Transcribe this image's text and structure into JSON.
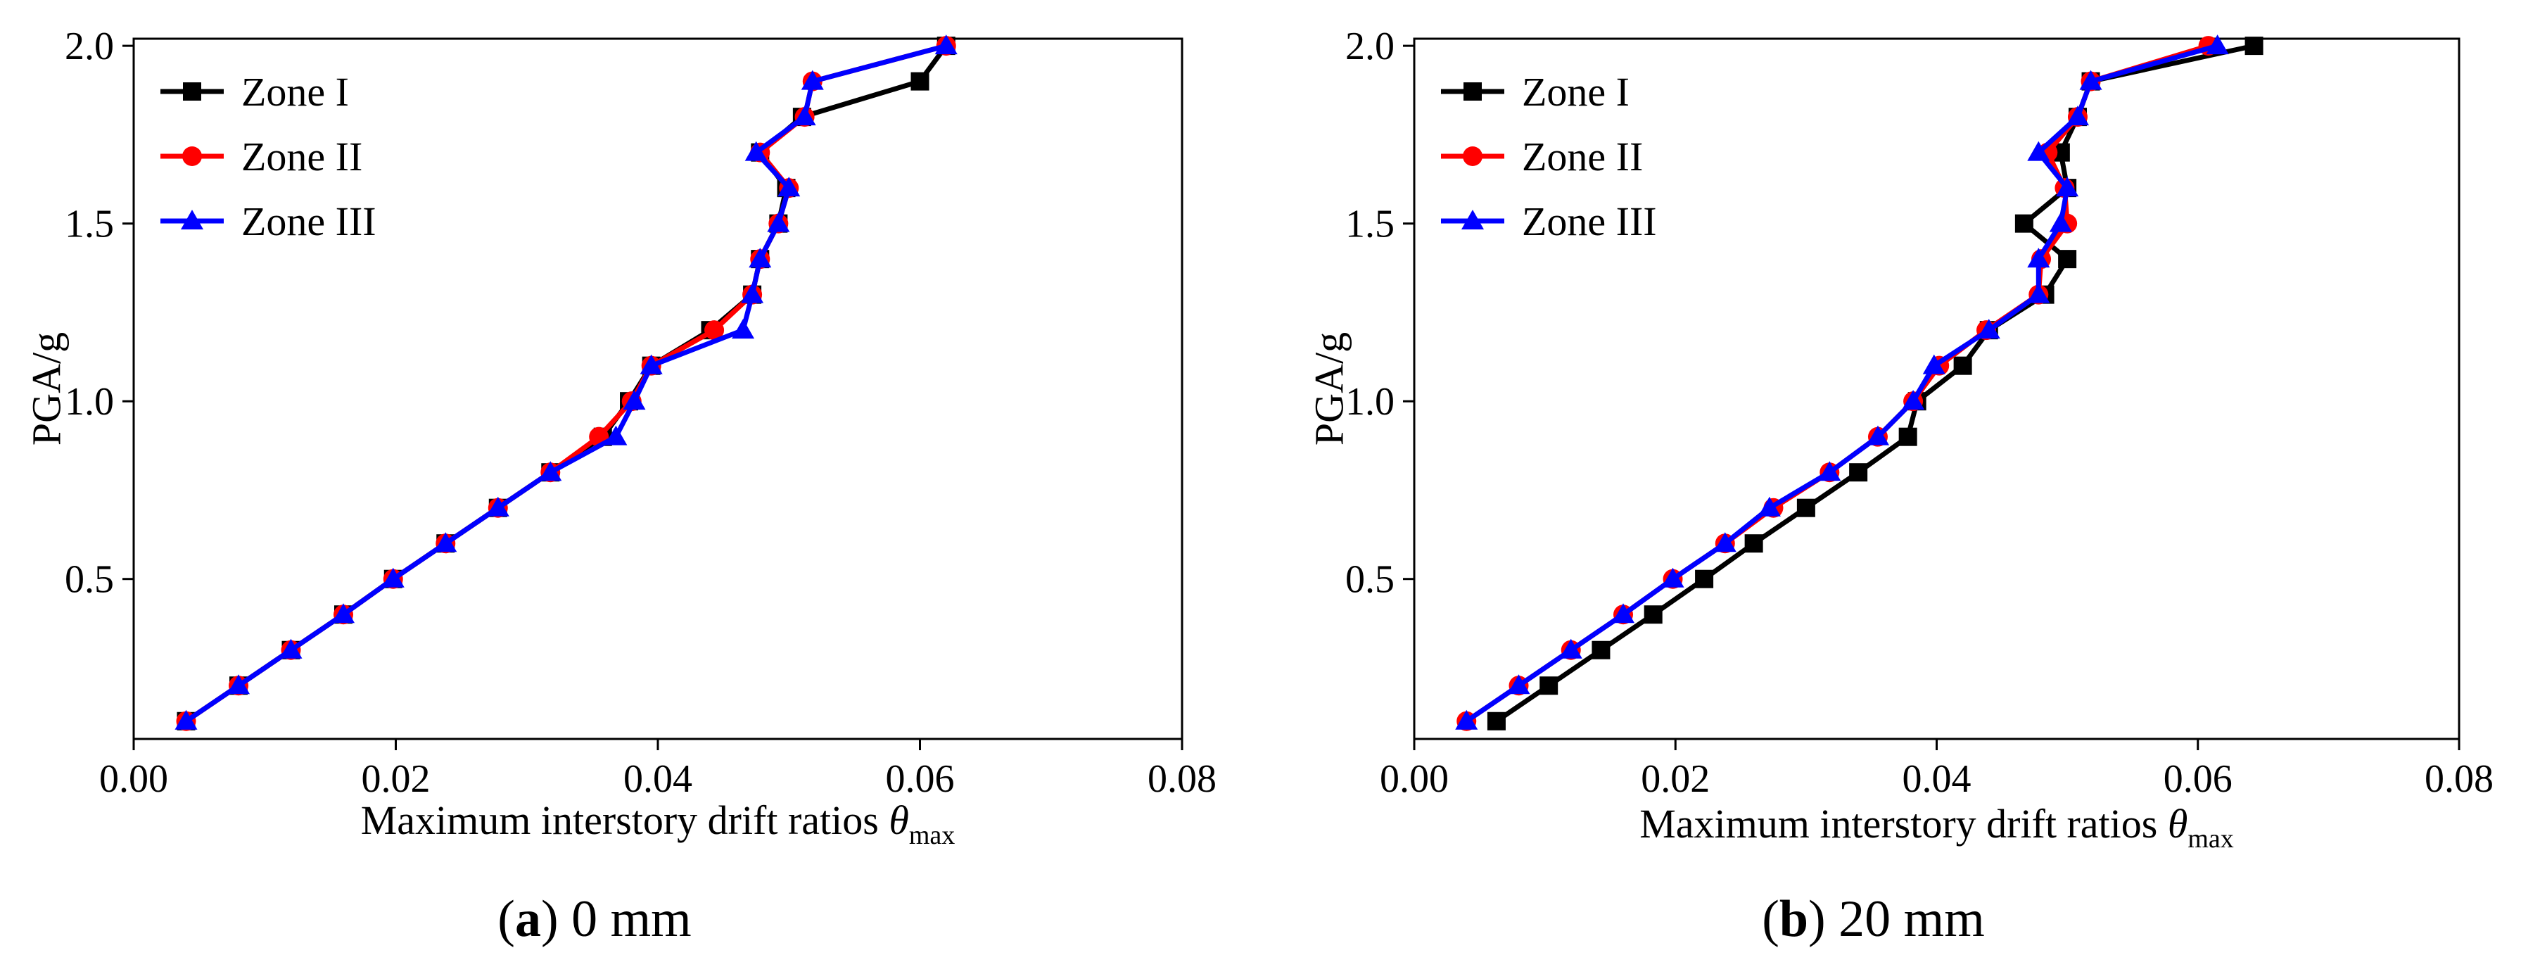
{
  "chart_data": [
    {
      "type": "line",
      "panel_letter": "a",
      "caption": " 0 mm",
      "xlabel": "Maximum interstory drift ratios ",
      "xlabel_symbol": "θ",
      "xlabel_subscript": "max",
      "ylabel": "PGA/g",
      "xlim": [
        0,
        0.08
      ],
      "ylim": [
        0.05,
        2.02
      ],
      "xticks": [
        0,
        0.02,
        0.04,
        0.06,
        0.08
      ],
      "xtick_labels": [
        "0.00",
        "0.02",
        "0.04",
        "0.06",
        "0.08"
      ],
      "yticks": [
        0.5,
        1.0,
        1.5,
        2.0
      ],
      "ytick_labels": [
        "0.5",
        "1.0",
        "1.5",
        "2.0"
      ],
      "legend_position": "top-left",
      "series": [
        {
          "name": "Zone I",
          "color": "#000000",
          "marker": "square",
          "x": [
            0.004,
            0.008,
            0.012,
            0.016,
            0.0198,
            0.0238,
            0.0278,
            0.0318,
            0.0358,
            0.0378,
            0.0395,
            0.044,
            0.0472,
            0.0478,
            0.0492,
            0.0498,
            0.0478,
            0.051,
            0.06,
            0.062
          ],
          "y": [
            0.1,
            0.2,
            0.3,
            0.4,
            0.5,
            0.6,
            0.7,
            0.8,
            0.9,
            1.0,
            1.1,
            1.2,
            1.3,
            1.4,
            1.5,
            1.6,
            1.7,
            1.8,
            1.9,
            2.0
          ]
        },
        {
          "name": "Zone II",
          "color": "#ff0000",
          "marker": "circle",
          "x": [
            0.004,
            0.008,
            0.012,
            0.016,
            0.0198,
            0.0238,
            0.0278,
            0.0318,
            0.0355,
            0.038,
            0.0395,
            0.0443,
            0.0472,
            0.0478,
            0.0492,
            0.05,
            0.0478,
            0.0512,
            0.0518,
            0.062
          ],
          "y": [
            0.1,
            0.2,
            0.3,
            0.4,
            0.5,
            0.6,
            0.7,
            0.8,
            0.9,
            1.0,
            1.1,
            1.2,
            1.3,
            1.4,
            1.5,
            1.6,
            1.7,
            1.8,
            1.9,
            2.0
          ]
        },
        {
          "name": "Zone III",
          "color": "#0000ff",
          "marker": "triangle",
          "x": [
            0.004,
            0.008,
            0.012,
            0.016,
            0.0198,
            0.0238,
            0.0278,
            0.0318,
            0.0368,
            0.0382,
            0.0395,
            0.0465,
            0.0472,
            0.0478,
            0.0492,
            0.05,
            0.0475,
            0.0512,
            0.0518,
            0.062
          ],
          "y": [
            0.1,
            0.2,
            0.3,
            0.4,
            0.5,
            0.6,
            0.7,
            0.8,
            0.9,
            1.0,
            1.1,
            1.2,
            1.3,
            1.4,
            1.5,
            1.6,
            1.7,
            1.8,
            1.9,
            2.0
          ]
        }
      ]
    },
    {
      "type": "line",
      "panel_letter": "b",
      "caption": " 20 mm",
      "xlabel": "Maximum interstory drift ratios ",
      "xlabel_symbol": "θ",
      "xlabel_subscript": "max",
      "ylabel": "PGA/g",
      "xlim": [
        0,
        0.08
      ],
      "ylim": [
        0.05,
        2.02
      ],
      "xticks": [
        0,
        0.02,
        0.04,
        0.06,
        0.08
      ],
      "xtick_labels": [
        "0.00",
        "0.02",
        "0.04",
        "0.06",
        "0.08"
      ],
      "yticks": [
        0.5,
        1.0,
        1.5,
        2.0
      ],
      "ytick_labels": [
        "0.5",
        "1.0",
        "1.5",
        "2.0"
      ],
      "legend_position": "top-left",
      "series": [
        {
          "name": "Zone I",
          "color": "#000000",
          "marker": "square",
          "x": [
            0.0063,
            0.0103,
            0.0143,
            0.0183,
            0.0222,
            0.026,
            0.03,
            0.034,
            0.0378,
            0.0385,
            0.042,
            0.044,
            0.0483,
            0.05,
            0.0467,
            0.05,
            0.0495,
            0.0508,
            0.0518,
            0.0643
          ],
          "y": [
            0.1,
            0.2,
            0.3,
            0.4,
            0.5,
            0.6,
            0.7,
            0.8,
            0.9,
            1.0,
            1.1,
            1.2,
            1.3,
            1.4,
            1.5,
            1.6,
            1.7,
            1.8,
            1.9,
            2.0
          ]
        },
        {
          "name": "Zone II",
          "color": "#ff0000",
          "marker": "circle",
          "x": [
            0.004,
            0.008,
            0.012,
            0.016,
            0.0198,
            0.0238,
            0.0275,
            0.0318,
            0.0355,
            0.0382,
            0.0402,
            0.0438,
            0.0478,
            0.048,
            0.05,
            0.0498,
            0.0485,
            0.0508,
            0.0518,
            0.0608
          ],
          "y": [
            0.1,
            0.2,
            0.3,
            0.4,
            0.5,
            0.6,
            0.7,
            0.8,
            0.9,
            1.0,
            1.1,
            1.2,
            1.3,
            1.4,
            1.5,
            1.6,
            1.7,
            1.8,
            1.9,
            2.0
          ]
        },
        {
          "name": "Zone III",
          "color": "#0000ff",
          "marker": "triangle",
          "x": [
            0.004,
            0.008,
            0.012,
            0.016,
            0.0198,
            0.0238,
            0.0272,
            0.0318,
            0.0355,
            0.0382,
            0.0398,
            0.044,
            0.0478,
            0.0478,
            0.0495,
            0.05,
            0.0478,
            0.0508,
            0.0518,
            0.0615
          ],
          "y": [
            0.1,
            0.2,
            0.3,
            0.4,
            0.5,
            0.6,
            0.7,
            0.8,
            0.9,
            1.0,
            1.1,
            1.2,
            1.3,
            1.4,
            1.5,
            1.6,
            1.7,
            1.8,
            1.9,
            2.0
          ]
        }
      ]
    }
  ]
}
